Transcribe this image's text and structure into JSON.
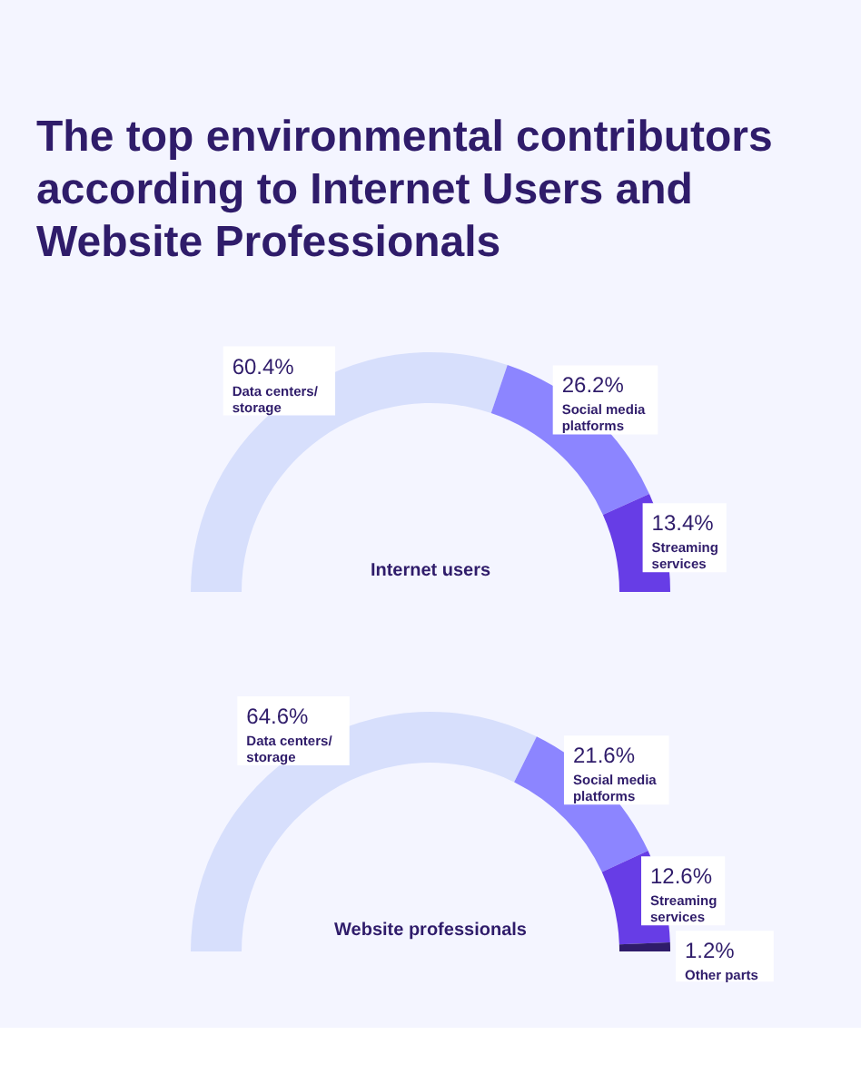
{
  "chart_data": [
    {
      "type": "donut",
      "title": "The top environmental contributors according to Internet Users and Website Professionals",
      "subtitle": "Internet users",
      "categories": [
        "Data centers/ storage",
        "Social media platforms",
        "Streaming services"
      ],
      "values": [
        60.4,
        26.2,
        13.4
      ],
      "value_labels": [
        "60.4%",
        "26.2%",
        "13.4%"
      ],
      "colors": [
        "#d7dffc",
        "#8c85ff",
        "#673de6"
      ]
    },
    {
      "type": "donut",
      "subtitle": "Website professionals",
      "categories": [
        "Data centers/ storage",
        "Social media platforms",
        "Streaming services",
        "Other parts"
      ],
      "values": [
        64.6,
        21.6,
        12.6,
        1.2
      ],
      "value_labels": [
        "64.6%",
        "21.6%",
        "12.6%",
        "1.2%"
      ],
      "colors": [
        "#d7dffc",
        "#8c85ff",
        "#673de6",
        "#2f1c6a"
      ]
    }
  ]
}
